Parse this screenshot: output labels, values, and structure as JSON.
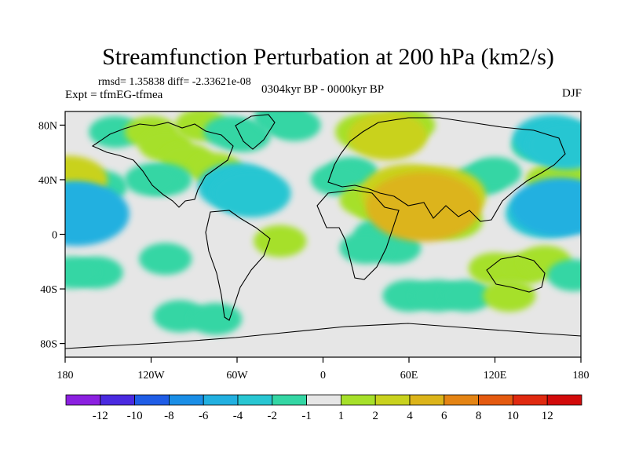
{
  "chart_data": {
    "type": "heatmap",
    "title": "Streamfunction Perturbation at 200 hPa (km2/s)",
    "stats": "rmsd= 1.35838 diff= -2.33621e-08",
    "left_label": "Expt = tfmEG-tfmea",
    "center_label": "0304kyr BP - 0000kyr BP",
    "right_label": "DJF",
    "xlim": [
      -180,
      180
    ],
    "ylim": [
      -90,
      90
    ],
    "x_ticks": [
      {
        "value": -180,
        "label": "180"
      },
      {
        "value": -120,
        "label": "120W"
      },
      {
        "value": -60,
        "label": "60W"
      },
      {
        "value": 0,
        "label": "0"
      },
      {
        "value": 60,
        "label": "60E"
      },
      {
        "value": 120,
        "label": "120E"
      },
      {
        "value": 180,
        "label": "180"
      }
    ],
    "y_ticks": [
      {
        "value": 80,
        "label": "80N"
      },
      {
        "value": 40,
        "label": "40N"
      },
      {
        "value": 0,
        "label": "0"
      },
      {
        "value": -40,
        "label": "40S"
      },
      {
        "value": -80,
        "label": "80S"
      }
    ],
    "contour_levels": [
      -12,
      -10,
      -8,
      -6,
      -4,
      -2,
      -1,
      1,
      2,
      4,
      6,
      8,
      10,
      12
    ],
    "colorbar": {
      "colors": [
        "#8b20e0",
        "#4a2ae0",
        "#1f5de6",
        "#1a8ee6",
        "#22b0e0",
        "#28c6d2",
        "#34d6a4",
        "#e6e6e6",
        "#a6e02a",
        "#c9d21e",
        "#dcb41a",
        "#e48414",
        "#e45a10",
        "#e02a10",
        "#d20a0a"
      ],
      "labels": [
        "-12",
        "-10",
        "-8",
        "-6",
        "-4",
        "-2",
        "-1",
        "1",
        "2",
        "4",
        "6",
        "8",
        "10",
        "12"
      ]
    },
    "anomalies": [
      {
        "lon": -155,
        "lat": 35,
        "value": -1.5
      },
      {
        "lon": -175,
        "lat": 18,
        "value": -3.5
      },
      {
        "lon": -172,
        "lat": 15,
        "value": -4.5
      },
      {
        "lon": -178,
        "lat": 40,
        "value": 3
      },
      {
        "lon": -158,
        "lat": -28,
        "value": -1.5
      },
      {
        "lon": -175,
        "lat": -28,
        "value": -1.5
      },
      {
        "lon": -110,
        "lat": -18,
        "value": -1.5
      },
      {
        "lon": -145,
        "lat": 75,
        "value": -1.5
      },
      {
        "lon": -120,
        "lat": 75,
        "value": 1.5
      },
      {
        "lon": -110,
        "lat": 65,
        "value": 1.5
      },
      {
        "lon": -95,
        "lat": 55,
        "value": 1.5
      },
      {
        "lon": -85,
        "lat": 80,
        "value": 1.5
      },
      {
        "lon": -75,
        "lat": 48,
        "value": 1.5
      },
      {
        "lon": -65,
        "lat": 75,
        "value": -1.5
      },
      {
        "lon": -55,
        "lat": 72,
        "value": -1.5
      },
      {
        "lon": -110,
        "lat": 40,
        "value": -1.5
      },
      {
        "lon": -120,
        "lat": 40,
        "value": -1.5
      },
      {
        "lon": -60,
        "lat": 35,
        "value": -3
      },
      {
        "lon": -50,
        "lat": 30,
        "value": -3
      },
      {
        "lon": -30,
        "lat": 85,
        "value": -1.5
      },
      {
        "lon": -20,
        "lat": 80,
        "value": -1.5
      },
      {
        "lon": -30,
        "lat": -5,
        "value": 1.5
      },
      {
        "lon": -100,
        "lat": -60,
        "value": -1.5
      },
      {
        "lon": -75,
        "lat": -62,
        "value": -1.5
      },
      {
        "lon": 50,
        "lat": 75,
        "value": 2
      },
      {
        "lon": 30,
        "lat": 75,
        "value": 2
      },
      {
        "lon": 45,
        "lat": 72,
        "value": 3
      },
      {
        "lon": 60,
        "lat": 80,
        "value": 1.5
      },
      {
        "lon": 20,
        "lat": 45,
        "value": -1.5
      },
      {
        "lon": 10,
        "lat": 40,
        "value": -1.5
      },
      {
        "lon": 70,
        "lat": 20,
        "value": 5
      },
      {
        "lon": 60,
        "lat": 30,
        "value": 4
      },
      {
        "lon": 80,
        "lat": 28,
        "value": 4
      },
      {
        "lon": 90,
        "lat": 10,
        "value": 2
      },
      {
        "lon": 40,
        "lat": 20,
        "value": 1.5
      },
      {
        "lon": 30,
        "lat": 25,
        "value": 1.5
      },
      {
        "lon": 40,
        "lat": 0,
        "value": -1.5
      },
      {
        "lon": 50,
        "lat": -10,
        "value": -1.5
      },
      {
        "lon": 30,
        "lat": -10,
        "value": -1.5
      },
      {
        "lon": 60,
        "lat": -45,
        "value": -1.5
      },
      {
        "lon": 80,
        "lat": -45,
        "value": -1.5
      },
      {
        "lon": 100,
        "lat": -45,
        "value": -1.5
      },
      {
        "lon": 120,
        "lat": -25,
        "value": 1.5
      },
      {
        "lon": 140,
        "lat": -25,
        "value": 1.5
      },
      {
        "lon": 155,
        "lat": -20,
        "value": 1.5
      },
      {
        "lon": 130,
        "lat": -45,
        "value": 1.5
      },
      {
        "lon": 110,
        "lat": 40,
        "value": -1.5
      },
      {
        "lon": 120,
        "lat": 45,
        "value": -1.5
      },
      {
        "lon": 150,
        "lat": 65,
        "value": -1.5
      },
      {
        "lon": 160,
        "lat": 70,
        "value": -3
      },
      {
        "lon": 170,
        "lat": 65,
        "value": -3
      },
      {
        "lon": 165,
        "lat": 20,
        "value": -4
      },
      {
        "lon": 155,
        "lat": 15,
        "value": -3
      },
      {
        "lon": 175,
        "lat": 20,
        "value": -3
      },
      {
        "lon": 160,
        "lat": 40,
        "value": 1.5
      },
      {
        "lon": 175,
        "lat": 40,
        "value": 1.5
      },
      {
        "lon": 175,
        "lat": -30,
        "value": -1.5
      }
    ]
  }
}
